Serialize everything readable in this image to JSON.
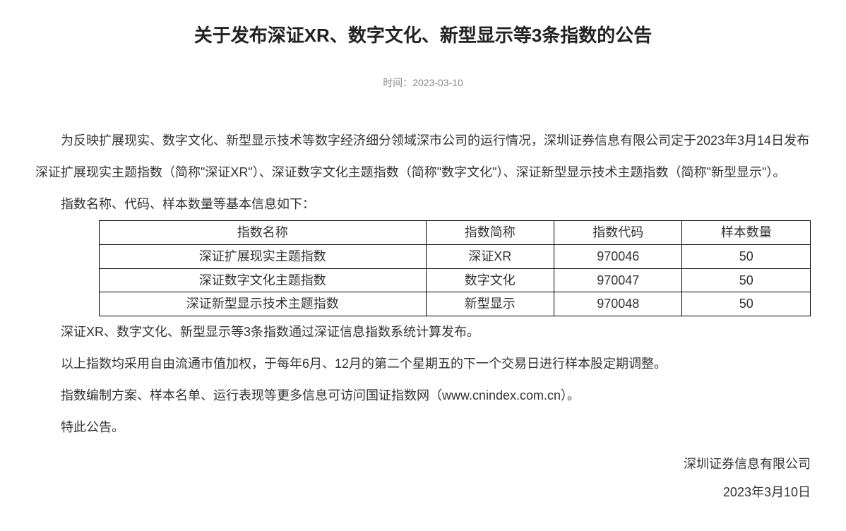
{
  "title": "关于发布深证XR、数字文化、新型显示等3条指数的公告",
  "meta": {
    "time_label": "时间：",
    "time_value": "2023-03-10"
  },
  "paragraphs": {
    "p1": "为反映扩展现实、数字文化、新型显示技术等数字经济细分领域深市公司的运行情况，深圳证券信息有限公司定于2023年3月14日发布深证扩展现实主题指数（简称\"深证XR\"）、深证数字文化主题指数（简称\"数字文化\"）、深证新型显示技术主题指数（简称\"新型显示\"）。",
    "p2": "指数名称、代码、样本数量等基本信息如下：",
    "p3": "深证XR、数字文化、新型显示等3条指数通过深证信息指数系统计算发布。",
    "p4": "以上指数均采用自由流通市值加权，于每年6月、12月的第二个星期五的下一个交易日进行样本股定期调整。",
    "p5": "指数编制方案、样本名单、运行表现等更多信息可访问国证指数网（www.cnindex.com.cn）。",
    "p6": "特此公告。"
  },
  "table": {
    "headers": {
      "col1": "指数名称",
      "col2": "指数简称",
      "col3": "指数代码",
      "col4": "样本数量"
    },
    "rows": [
      {
        "name": "深证扩展现实主题指数",
        "short": "深证XR",
        "code": "970046",
        "count": "50"
      },
      {
        "name": "深证数字文化主题指数",
        "short": "数字文化",
        "code": "970047",
        "count": "50"
      },
      {
        "name": "深证新型显示技术主题指数",
        "short": "新型显示",
        "code": "970048",
        "count": "50"
      }
    ]
  },
  "signature": {
    "org": "深圳证券信息有限公司",
    "date": "2023年3月10日"
  }
}
